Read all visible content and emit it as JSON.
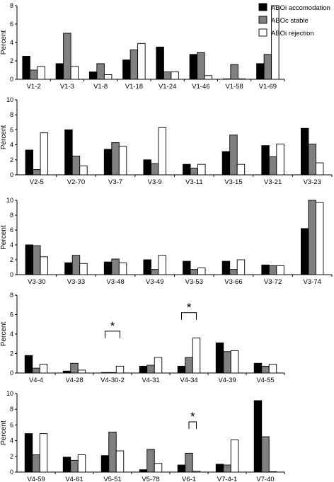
{
  "legend": [
    {
      "name": "ABOi accomodation",
      "color": "#000000"
    },
    {
      "name": "ABOc stable",
      "color": "#808080"
    },
    {
      "name": "ABOi rejection",
      "color": "#ffffff"
    }
  ],
  "chart_data": [
    {
      "type": "bar",
      "ylabel": "Percent",
      "ylim": [
        0,
        8
      ],
      "yticks": [
        0,
        2,
        4,
        6,
        8
      ],
      "categories": [
        "V1-2",
        "V1-3",
        "V1-8",
        "V1-18",
        "V1-24",
        "V1-46",
        "V1-58",
        "V1-69"
      ],
      "series": [
        {
          "name": "ABOi accomodation",
          "values": [
            2.5,
            1.7,
            0.8,
            2.1,
            3.5,
            2.7,
            0.0,
            1.7
          ]
        },
        {
          "name": "ABOc stable",
          "values": [
            1.0,
            5.0,
            1.7,
            3.2,
            0.8,
            2.9,
            1.6,
            2.7
          ]
        },
        {
          "name": "ABOi rejection",
          "values": [
            1.4,
            1.4,
            0.5,
            3.9,
            0.8,
            0.4,
            0.0,
            8.0
          ]
        }
      ],
      "annotations": []
    },
    {
      "type": "bar",
      "ylabel": "Percent",
      "ylim": [
        0,
        10
      ],
      "yticks": [
        0,
        2,
        4,
        6,
        8,
        10
      ],
      "categories": [
        "V2-5",
        "V2-70",
        "V3-7",
        "V3-9",
        "V3-11",
        "V3-15",
        "V3-21",
        "V3-23"
      ],
      "series": [
        {
          "name": "ABOi accomodation",
          "values": [
            3.3,
            6.0,
            3.4,
            2.0,
            1.4,
            3.1,
            3.9,
            6.2
          ]
        },
        {
          "name": "ABOc stable",
          "values": [
            0.7,
            2.5,
            4.3,
            1.5,
            0.9,
            5.3,
            2.4,
            4.1
          ]
        },
        {
          "name": "ABOi rejection",
          "values": [
            5.6,
            1.2,
            3.8,
            6.3,
            1.4,
            1.4,
            4.1,
            1.6
          ]
        }
      ],
      "annotations": []
    },
    {
      "type": "bar",
      "ylabel": "Percent",
      "ylim": [
        0,
        10
      ],
      "yticks": [
        0,
        2,
        4,
        6,
        8,
        10
      ],
      "categories": [
        "V3-30",
        "V3-33",
        "V3-48",
        "V3-49",
        "V3-53",
        "V3-66",
        "V3-72",
        "V3-74"
      ],
      "series": [
        {
          "name": "ABOi accomodation",
          "values": [
            4.0,
            1.6,
            1.7,
            2.0,
            1.8,
            1.8,
            1.3,
            6.2
          ]
        },
        {
          "name": "ABOc stable",
          "values": [
            3.9,
            2.6,
            2.1,
            0.7,
            0.7,
            0.7,
            1.2,
            10.0
          ]
        },
        {
          "name": "ABOi rejection",
          "values": [
            2.4,
            1.5,
            1.6,
            2.6,
            0.9,
            2.0,
            1.2,
            9.7
          ]
        }
      ],
      "annotations": []
    },
    {
      "type": "bar",
      "ylabel": "Percent",
      "ylim": [
        0,
        8
      ],
      "yticks": [
        0,
        2,
        4,
        6,
        8
      ],
      "categories": [
        "V4-4",
        "V4-28",
        "V4-30-2",
        "V4-31",
        "V4-34",
        "V4-39",
        "V4-55"
      ],
      "series": [
        {
          "name": "ABOi accomodation",
          "values": [
            1.8,
            0.2,
            0.05,
            0.7,
            0.7,
            3.1,
            1.0
          ]
        },
        {
          "name": "ABOc stable",
          "values": [
            0.5,
            1.0,
            0.05,
            0.8,
            1.6,
            2.2,
            0.7
          ]
        },
        {
          "name": "ABOi rejection",
          "values": [
            0.9,
            0.3,
            0.7,
            1.6,
            3.6,
            2.3,
            0.9
          ]
        }
      ],
      "annotations": [
        {
          "text": "*",
          "category": "V4-30-2",
          "from_series": 0,
          "to_series": 2,
          "y": 4.3
        },
        {
          "text": "*",
          "category": "V4-34",
          "from_series": 0,
          "to_series": 2,
          "y": 6.2
        }
      ]
    },
    {
      "type": "bar",
      "ylabel": "Percent",
      "ylim": [
        0,
        10
      ],
      "yticks": [
        0,
        2,
        4,
        6,
        8,
        10
      ],
      "categories": [
        "V4-59",
        "V4-61",
        "V5-51",
        "V5-78",
        "V6-1",
        "V7-4-1",
        "V7-40"
      ],
      "series": [
        {
          "name": "ABOi accomodation",
          "values": [
            4.9,
            1.9,
            2.1,
            0.3,
            0.9,
            1.0,
            9.1
          ]
        },
        {
          "name": "ABOc stable",
          "values": [
            2.2,
            1.5,
            5.1,
            2.9,
            2.4,
            0.9,
            4.5
          ]
        },
        {
          "name": "ABOi rejection",
          "values": [
            4.9,
            2.2,
            2.7,
            1.1,
            0.1,
            4.1,
            0.0
          ]
        }
      ],
      "annotations": [
        {
          "text": "*",
          "category": "V6-1",
          "from_series": 1,
          "to_series": 2,
          "y": 6.4
        }
      ]
    }
  ]
}
